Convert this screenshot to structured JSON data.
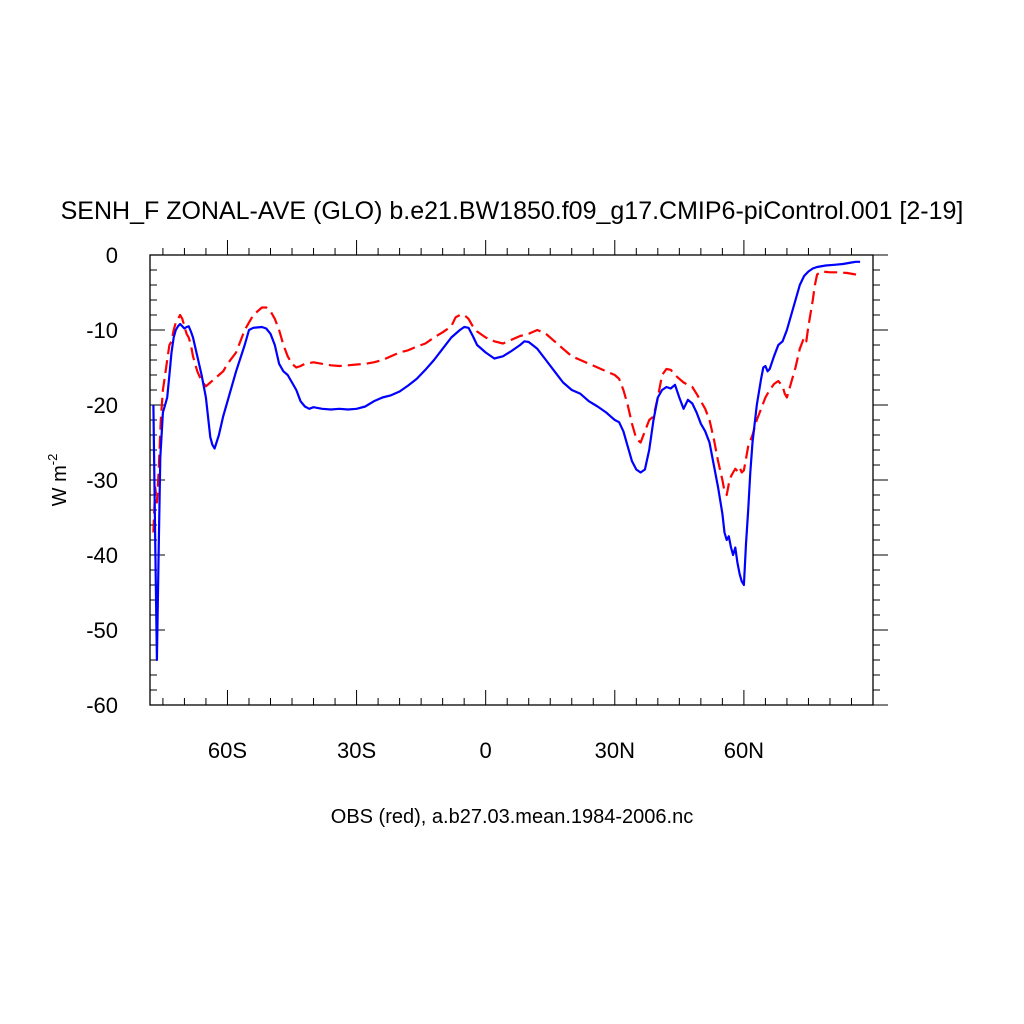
{
  "chart_data": {
    "type": "line",
    "title": "SENH_F ZONAL-AVE (GLO) b.e21.BW1850.f09_g17.CMIP6-piControl.001 [2-19]",
    "xlabel": "OBS (red), a.b27.03.mean.1984-2006.nc",
    "ylabel": "W m",
    "ylabel_superscript": "-2",
    "xlim": [
      -78,
      90
    ],
    "ylim": [
      -60,
      0
    ],
    "x_ticks": [
      {
        "value": -60,
        "label": "60S"
      },
      {
        "value": -30,
        "label": "30S"
      },
      {
        "value": 0,
        "label": "0"
      },
      {
        "value": 30,
        "label": "30N"
      },
      {
        "value": 60,
        "label": "60N"
      }
    ],
    "y_ticks": [
      {
        "value": 0,
        "label": "0"
      },
      {
        "value": -10,
        "label": "-10"
      },
      {
        "value": -20,
        "label": "-20"
      },
      {
        "value": -30,
        "label": "-30"
      },
      {
        "value": -40,
        "label": "-40"
      },
      {
        "value": -50,
        "label": "-50"
      },
      {
        "value": -60,
        "label": "-60"
      }
    ],
    "grid": false,
    "series": [
      {
        "color": "#0000ff",
        "dash": "solid",
        "points": [
          [
            -77.2,
            -20
          ],
          [
            -76.8,
            -38
          ],
          [
            -76.4,
            -54
          ],
          [
            -76.0,
            -40
          ],
          [
            -75.6,
            -27
          ],
          [
            -75.0,
            -21
          ],
          [
            -74.5,
            -20
          ],
          [
            -74.0,
            -19
          ],
          [
            -73.5,
            -16
          ],
          [
            -73.0,
            -13
          ],
          [
            -72.5,
            -11
          ],
          [
            -72.0,
            -10
          ],
          [
            -71.5,
            -9.5
          ],
          [
            -71.0,
            -9.2
          ],
          [
            -70.5,
            -9.5
          ],
          [
            -70.0,
            -9.8
          ],
          [
            -69.5,
            -9.6
          ],
          [
            -69.0,
            -9.5
          ],
          [
            -68.5,
            -10.2
          ],
          [
            -68.0,
            -11
          ],
          [
            -67.0,
            -13.5
          ],
          [
            -66.0,
            -16
          ],
          [
            -65.0,
            -19
          ],
          [
            -64.0,
            -24.3
          ],
          [
            -63.5,
            -25.3
          ],
          [
            -63.0,
            -25.8
          ],
          [
            -62.0,
            -24
          ],
          [
            -61.0,
            -21.5
          ],
          [
            -60.0,
            -19.5
          ],
          [
            -58.0,
            -15.5
          ],
          [
            -56.0,
            -12
          ],
          [
            -55.0,
            -10
          ],
          [
            -54.0,
            -9.7
          ],
          [
            -52.0,
            -9.6
          ],
          [
            -51.0,
            -9.8
          ],
          [
            -50.0,
            -10.5
          ],
          [
            -49.0,
            -12
          ],
          [
            -48.0,
            -14.5
          ],
          [
            -47.0,
            -15.5
          ],
          [
            -46.0,
            -16
          ],
          [
            -45.0,
            -17
          ],
          [
            -44.0,
            -18
          ],
          [
            -43.0,
            -19.5
          ],
          [
            -42.0,
            -20.2
          ],
          [
            -41.0,
            -20.5
          ],
          [
            -40.0,
            -20.3
          ],
          [
            -38.0,
            -20.5
          ],
          [
            -36.0,
            -20.6
          ],
          [
            -34.0,
            -20.5
          ],
          [
            -32.0,
            -20.6
          ],
          [
            -30.0,
            -20.5
          ],
          [
            -28.0,
            -20.2
          ],
          [
            -26.0,
            -19.5
          ],
          [
            -24.0,
            -19.0
          ],
          [
            -22.0,
            -18.7
          ],
          [
            -20.0,
            -18.2
          ],
          [
            -18.0,
            -17.4
          ],
          [
            -16.0,
            -16.5
          ],
          [
            -14.0,
            -15.3
          ],
          [
            -12.0,
            -14.0
          ],
          [
            -10.0,
            -12.5
          ],
          [
            -8.0,
            -11.0
          ],
          [
            -6.0,
            -10.0
          ],
          [
            -5.0,
            -9.6
          ],
          [
            -4.0,
            -9.7
          ],
          [
            -3.0,
            -10.8
          ],
          [
            -2.0,
            -12.0
          ],
          [
            0.0,
            -13.0
          ],
          [
            2.0,
            -13.8
          ],
          [
            4.0,
            -13.5
          ],
          [
            6.0,
            -12.8
          ],
          [
            8.0,
            -12.0
          ],
          [
            9.0,
            -11.5
          ],
          [
            10.0,
            -11.6
          ],
          [
            12.0,
            -12.5
          ],
          [
            14.0,
            -14.0
          ],
          [
            16.0,
            -15.5
          ],
          [
            18.0,
            -17.0
          ],
          [
            20.0,
            -18.0
          ],
          [
            22.0,
            -18.5
          ],
          [
            24.0,
            -19.5
          ],
          [
            26.0,
            -20.2
          ],
          [
            28.0,
            -21.0
          ],
          [
            29.0,
            -21.5
          ],
          [
            30.0,
            -22.0
          ],
          [
            31.0,
            -22.3
          ],
          [
            32.0,
            -23.5
          ],
          [
            33.0,
            -25.5
          ],
          [
            34.0,
            -27.5
          ],
          [
            35.0,
            -28.6
          ],
          [
            36.0,
            -29.0
          ],
          [
            37.0,
            -28.6
          ],
          [
            38.0,
            -26.0
          ],
          [
            39.0,
            -22.0
          ],
          [
            40.0,
            -19.0
          ],
          [
            41.0,
            -18.0
          ],
          [
            42.0,
            -17.6
          ],
          [
            43.0,
            -17.8
          ],
          [
            44.0,
            -17.3
          ],
          [
            45.0,
            -19.0
          ],
          [
            46.0,
            -20.5
          ],
          [
            47.0,
            -19.3
          ],
          [
            48.0,
            -19.8
          ],
          [
            49.0,
            -21.0
          ],
          [
            50.0,
            -22.5
          ],
          [
            51.0,
            -23.5
          ],
          [
            52.0,
            -25.0
          ],
          [
            53.0,
            -28.0
          ],
          [
            54.0,
            -31.0
          ],
          [
            55.0,
            -34.5
          ],
          [
            55.5,
            -37.0
          ],
          [
            56.0,
            -38.0
          ],
          [
            56.5,
            -37.5
          ],
          [
            57.0,
            -39.0
          ],
          [
            57.5,
            -40.0
          ],
          [
            58.0,
            -39.0
          ],
          [
            58.5,
            -41.0
          ],
          [
            59.0,
            -42.5
          ],
          [
            59.5,
            -43.5
          ],
          [
            60.0,
            -44.0
          ],
          [
            60.5,
            -38.5
          ],
          [
            61.0,
            -34.0
          ],
          [
            61.5,
            -29.0
          ],
          [
            62.0,
            -25.0
          ],
          [
            63.0,
            -20.0
          ],
          [
            64.0,
            -16.5
          ],
          [
            64.5,
            -15.0
          ],
          [
            65.0,
            -14.8
          ],
          [
            65.5,
            -15.5
          ],
          [
            66.0,
            -15.2
          ],
          [
            67.0,
            -13.5
          ],
          [
            68.0,
            -12.0
          ],
          [
            69.0,
            -11.5
          ],
          [
            70.0,
            -10.0
          ],
          [
            71.0,
            -8.0
          ],
          [
            72.0,
            -6.0
          ],
          [
            73.0,
            -4.0
          ],
          [
            74.0,
            -2.8
          ],
          [
            75.0,
            -2.2
          ],
          [
            76.0,
            -1.8
          ],
          [
            77.0,
            -1.6
          ],
          [
            79.0,
            -1.4
          ],
          [
            81.0,
            -1.3
          ],
          [
            83.0,
            -1.2
          ],
          [
            85.0,
            -1.0
          ],
          [
            86.0,
            -0.9
          ],
          [
            87.0,
            -0.9
          ]
        ]
      },
      {
        "color": "#ff0000",
        "dash": "dashed",
        "points": [
          [
            -77.2,
            -37
          ],
          [
            -76.8,
            -31
          ],
          [
            -76.4,
            -33
          ],
          [
            -76.0,
            -29
          ],
          [
            -75.5,
            -22
          ],
          [
            -75.0,
            -18
          ],
          [
            -74.5,
            -16
          ],
          [
            -74.0,
            -14
          ],
          [
            -73.5,
            -12
          ],
          [
            -73.0,
            -11.5
          ],
          [
            -72.5,
            -10
          ],
          [
            -72.0,
            -9
          ],
          [
            -71.5,
            -8.5
          ],
          [
            -71.0,
            -8.0
          ],
          [
            -70.5,
            -8.5
          ],
          [
            -70.0,
            -9.5
          ],
          [
            -69.5,
            -10.5
          ],
          [
            -69.0,
            -11.0
          ],
          [
            -68.5,
            -12
          ],
          [
            -68.0,
            -13.5
          ],
          [
            -67.0,
            -15.5
          ],
          [
            -66.0,
            -16.8
          ],
          [
            -65.0,
            -17.5
          ],
          [
            -64.0,
            -17.0
          ],
          [
            -63.0,
            -16.5
          ],
          [
            -62.0,
            -16.0
          ],
          [
            -61.0,
            -15.5
          ],
          [
            -60.0,
            -14.5
          ],
          [
            -58.0,
            -13.0
          ],
          [
            -56.0,
            -10.0
          ],
          [
            -54.0,
            -8.0
          ],
          [
            -52.0,
            -7.0
          ],
          [
            -51.0,
            -7.0
          ],
          [
            -50.0,
            -7.5
          ],
          [
            -49.0,
            -8.5
          ],
          [
            -48.0,
            -10.0
          ],
          [
            -47.0,
            -12.0
          ],
          [
            -46.0,
            -13.5
          ],
          [
            -45.0,
            -14.5
          ],
          [
            -44.0,
            -15.0
          ],
          [
            -43.0,
            -14.8
          ],
          [
            -42.0,
            -14.5
          ],
          [
            -40.0,
            -14.3
          ],
          [
            -38.0,
            -14.5
          ],
          [
            -36.0,
            -14.7
          ],
          [
            -34.0,
            -14.8
          ],
          [
            -32.0,
            -14.7
          ],
          [
            -30.0,
            -14.6
          ],
          [
            -28.0,
            -14.5
          ],
          [
            -26.0,
            -14.3
          ],
          [
            -24.0,
            -14.0
          ],
          [
            -22.0,
            -13.5
          ],
          [
            -20.0,
            -13.0
          ],
          [
            -18.0,
            -12.7
          ],
          [
            -16.0,
            -12.2
          ],
          [
            -14.0,
            -11.8
          ],
          [
            -12.0,
            -11.0
          ],
          [
            -10.0,
            -10.3
          ],
          [
            -8.0,
            -9.5
          ],
          [
            -7.0,
            -8.3
          ],
          [
            -6.0,
            -8.0
          ],
          [
            -5.0,
            -8.0
          ],
          [
            -4.0,
            -8.5
          ],
          [
            -3.0,
            -9.5
          ],
          [
            -2.0,
            -10.2
          ],
          [
            0.0,
            -11.0
          ],
          [
            2.0,
            -11.5
          ],
          [
            4.0,
            -11.8
          ],
          [
            6.0,
            -11.3
          ],
          [
            8.0,
            -10.8
          ],
          [
            10.0,
            -10.5
          ],
          [
            12.0,
            -10.0
          ],
          [
            14.0,
            -10.5
          ],
          [
            16.0,
            -11.5
          ],
          [
            18.0,
            -12.5
          ],
          [
            20.0,
            -13.5
          ],
          [
            22.0,
            -14.0
          ],
          [
            24.0,
            -14.5
          ],
          [
            26.0,
            -15.0
          ],
          [
            28.0,
            -15.5
          ],
          [
            30.0,
            -16.0
          ],
          [
            31.0,
            -16.5
          ],
          [
            32.0,
            -18.0
          ],
          [
            33.0,
            -20.0
          ],
          [
            34.0,
            -22.5
          ],
          [
            35.0,
            -24.5
          ],
          [
            36.0,
            -25.0
          ],
          [
            37.0,
            -23.5
          ],
          [
            38.0,
            -22.0
          ],
          [
            39.0,
            -21.5
          ],
          [
            40.0,
            -19.0
          ],
          [
            41.0,
            -16.0
          ],
          [
            42.0,
            -15.2
          ],
          [
            43.0,
            -15.3
          ],
          [
            44.0,
            -16.0
          ],
          [
            45.0,
            -16.5
          ],
          [
            46.0,
            -17.0
          ],
          [
            47.0,
            -17.3
          ],
          [
            48.0,
            -17.6
          ],
          [
            49.0,
            -18.5
          ],
          [
            50.0,
            -19.5
          ],
          [
            51.0,
            -20.5
          ],
          [
            52.0,
            -22.0
          ],
          [
            53.0,
            -24.5
          ],
          [
            54.0,
            -27.5
          ],
          [
            55.0,
            -30.0
          ],
          [
            55.5,
            -31.5
          ],
          [
            56.0,
            -32.0
          ],
          [
            56.5,
            -30.5
          ],
          [
            57.0,
            -29.5
          ],
          [
            57.5,
            -29.0
          ],
          [
            58.0,
            -28.5
          ],
          [
            58.5,
            -28.8
          ],
          [
            59.0,
            -28.3
          ],
          [
            59.5,
            -29.0
          ],
          [
            60.0,
            -28.7
          ],
          [
            61.0,
            -25.5
          ],
          [
            62.0,
            -24.0
          ],
          [
            63.0,
            -22.0
          ],
          [
            64.0,
            -20.5
          ],
          [
            65.0,
            -19.0
          ],
          [
            66.0,
            -18.0
          ],
          [
            67.0,
            -17.2
          ],
          [
            68.0,
            -16.8
          ],
          [
            69.0,
            -17.5
          ],
          [
            69.5,
            -18.5
          ],
          [
            70.0,
            -19.0
          ],
          [
            71.0,
            -17.0
          ],
          [
            72.0,
            -15.0
          ],
          [
            73.0,
            -12.5
          ],
          [
            74.0,
            -11.0
          ],
          [
            74.5,
            -11.5
          ],
          [
            75.0,
            -9.5
          ],
          [
            76.0,
            -6.0
          ],
          [
            76.5,
            -4.0
          ],
          [
            77.0,
            -2.6
          ],
          [
            78.0,
            -2.2
          ],
          [
            80.0,
            -2.3
          ],
          [
            82.0,
            -2.3
          ],
          [
            84.0,
            -2.4
          ],
          [
            86.0,
            -2.6
          ],
          [
            87.0,
            -2.7
          ]
        ]
      }
    ]
  }
}
